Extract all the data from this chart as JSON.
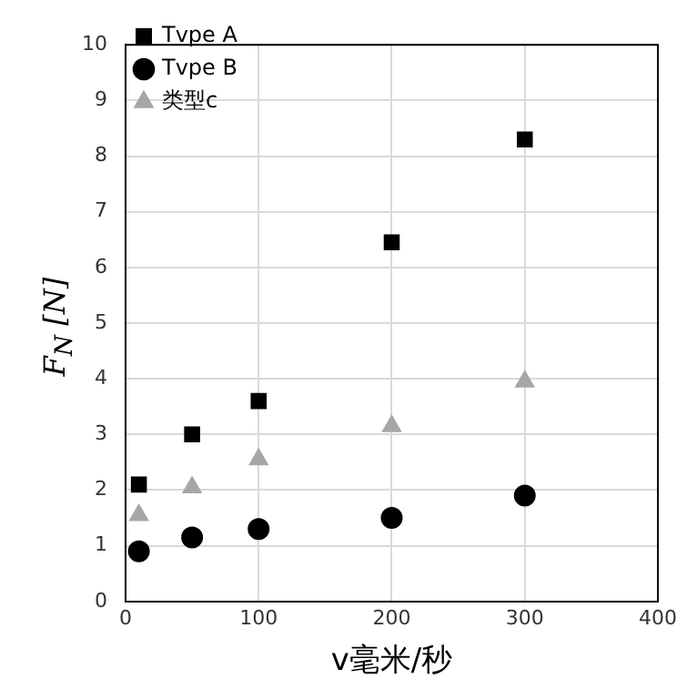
{
  "chart_data": {
    "type": "scatter",
    "xlabel": "v毫米/秒",
    "ylabel": "F$_{N}$ [N]",
    "xlim": [
      0,
      400
    ],
    "xticks": [
      0,
      100,
      200,
      300,
      400
    ],
    "ylim": [
      0,
      10
    ],
    "yticks": [
      0,
      1,
      2,
      3,
      4,
      5,
      6,
      7,
      8,
      9,
      10
    ],
    "grid": true,
    "legend": "top left",
    "series": [
      {
        "name": "Tvpe A",
        "color": "#000000",
        "marker": "square",
        "x": [
          10,
          50,
          100,
          200,
          300
        ],
        "values": [
          2.1,
          3.0,
          3.6,
          6.45,
          8.3
        ]
      },
      {
        "name": "Tvpe B",
        "color": "#000000",
        "marker": "circle",
        "x": [
          10,
          50,
          100,
          200,
          300
        ],
        "values": [
          0.9,
          1.15,
          1.3,
          1.5,
          1.9
        ]
      },
      {
        "name": "类型c",
        "color": "#a6a6a6",
        "marker": "triangle",
        "x": [
          10,
          50,
          100,
          200,
          300
        ],
        "values": [
          1.55,
          2.05,
          2.55,
          3.15,
          3.95
        ]
      }
    ]
  }
}
